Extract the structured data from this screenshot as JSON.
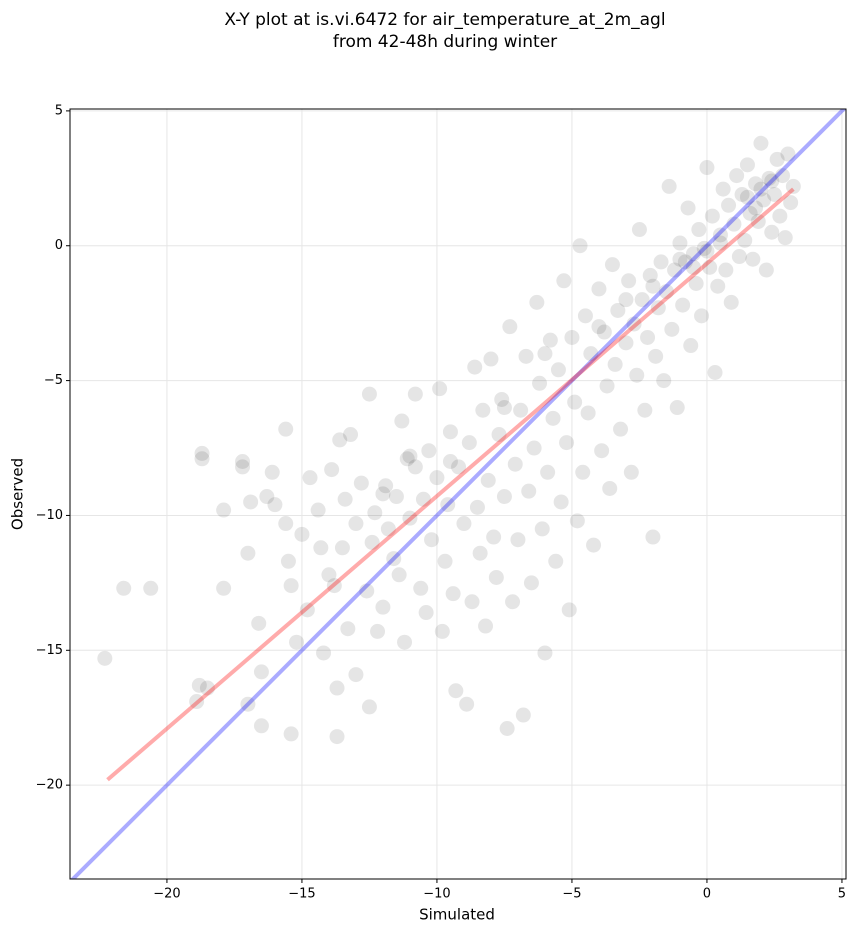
{
  "chart_data": {
    "type": "scatter",
    "title": [
      "X-Y plot at is.vi.6472 for air_temperature_at_2m_agl",
      "from 42-48h during winter"
    ],
    "x_label": "Simulated",
    "y_label": "Observed",
    "xlim": [
      -23.59,
      5.15
    ],
    "ylim": [
      -23.48,
      5.07
    ],
    "xticks": [
      {
        "value": -20,
        "label": "−20"
      },
      {
        "value": -15,
        "label": "−15"
      },
      {
        "value": -10,
        "label": "−10"
      },
      {
        "value": -5,
        "label": "−5"
      },
      0,
      5
    ],
    "yticks": [
      {
        "value": -20,
        "label": "−20"
      },
      {
        "value": -15,
        "label": "−15"
      },
      {
        "value": -10,
        "label": "−10"
      },
      {
        "value": -5,
        "label": "−5"
      },
      0,
      5
    ],
    "grid": true,
    "series": [
      {
        "color": "#000000",
        "x": [
          -22.3,
          -21.6,
          -20.6,
          -18.7,
          -18.7,
          -17.9,
          -17.9,
          -17.2,
          -17.2,
          -17,
          -16.9,
          -16.6,
          -16.3,
          -16.5,
          -16.5,
          -17,
          -18.9,
          -18.8,
          -18.5,
          -16.1,
          -16,
          -15.6,
          -15.6,
          -15.5,
          -15.4,
          -15.4,
          -15.2,
          -15,
          -14.8,
          -14.7,
          -14.4,
          -14.3,
          -14.2,
          -14,
          -13.9,
          -13.8,
          -13.7,
          -13.7,
          -13.6,
          -13.5,
          -13.4,
          -13.3,
          -13.2,
          -13,
          -13,
          -12.8,
          -12.6,
          -12.5,
          -12.5,
          -12.4,
          -12.3,
          -12.2,
          -12,
          -11.9,
          -11.8,
          -11.6,
          -11.5,
          -11.4,
          -11.3,
          -11.2,
          -11.1,
          -11,
          -10.8,
          -10.8,
          -10.6,
          -10.5,
          -10.4,
          -10.3,
          -10.2,
          -10,
          -9.9,
          -9.8,
          -9.7,
          -9.6,
          -9.5,
          -9.4,
          -9.3,
          -9.2,
          -9,
          -8.9,
          -8.8,
          -8.7,
          -8.6,
          -8.5,
          -8.4,
          -8.3,
          -8.2,
          -8.1,
          -8,
          -7.9,
          -7.8,
          -7.7,
          -7.6,
          -7.5,
          -7.4,
          -7.3,
          -7.2,
          -7.1,
          -7,
          -6.9,
          -6.8,
          -6.7,
          -6.6,
          -6.5,
          -6.4,
          -6.3,
          -6.2,
          -6.1,
          -6,
          -5.9,
          -5.8,
          -5.7,
          -5.6,
          -5.5,
          -5.4,
          -5.3,
          -5.2,
          -5.1,
          -5,
          -4.9,
          -4.8,
          -4.7,
          -4.6,
          -4.5,
          -4.4,
          -4.3,
          -4.2,
          -4,
          -3.9,
          -3.8,
          -3.7,
          -3.6,
          -3.5,
          -3.4,
          -3.3,
          -3.2,
          -3,
          -2.9,
          -2.8,
          -2.7,
          -2.6,
          -2.5,
          -2.4,
          -2.3,
          -2.2,
          -2.1,
          -2,
          -1.9,
          -1.8,
          -1.7,
          -1.6,
          -1.5,
          -1.4,
          -1.3,
          -1.2,
          -1.1,
          -1,
          -0.9,
          -0.8,
          -0.7,
          -0.6,
          -0.5,
          -0.4,
          -0.3,
          -0.2,
          -0.1,
          0,
          0.1,
          0.2,
          0.3,
          0.4,
          0.5,
          0.6,
          0.7,
          0.8,
          0.9,
          1,
          1.1,
          1.2,
          1.3,
          1.4,
          1.5,
          1.6,
          1.7,
          1.8,
          1.9,
          2,
          2.1,
          2.2,
          2.3,
          2.4,
          2.5,
          2.6,
          2.7,
          2.8,
          2.9,
          3,
          3.1,
          3.2,
          -9.5,
          -11,
          -12,
          -7.5,
          -6,
          -4,
          -3,
          -2,
          -1,
          0,
          1.5,
          2,
          1.8,
          2.4,
          -0.5,
          0.5
        ],
        "y": [
          -15.3,
          -12.7,
          -12.7,
          -7.7,
          -7.9,
          -9.8,
          -12.7,
          -8,
          -8.2,
          -11.4,
          -9.5,
          -14,
          -9.3,
          -15.8,
          -17.8,
          -17,
          -16.9,
          -16.3,
          -16.4,
          -8.4,
          -9.6,
          -6.8,
          -10.3,
          -11.7,
          -12.6,
          -18.1,
          -14.7,
          -10.7,
          -13.5,
          -8.6,
          -9.8,
          -11.2,
          -15.1,
          -12.2,
          -8.3,
          -12.6,
          -16.4,
          -18.2,
          -7.2,
          -11.2,
          -9.4,
          -14.2,
          -7,
          -10.3,
          -15.9,
          -8.8,
          -12.8,
          -5.5,
          -17.1,
          -11,
          -9.9,
          -14.3,
          -13.4,
          -8.9,
          -10.5,
          -11.6,
          -9.3,
          -12.2,
          -6.5,
          -14.7,
          -7.9,
          -10.1,
          -8.2,
          -5.5,
          -12.7,
          -9.4,
          -13.6,
          -7.6,
          -10.9,
          -8.6,
          -5.3,
          -14.3,
          -11.7,
          -9.6,
          -6.9,
          -12.9,
          -16.5,
          -8.2,
          -10.3,
          -17,
          -7.3,
          -13.2,
          -4.5,
          -9.7,
          -11.4,
          -6.1,
          -14.1,
          -8.7,
          -4.2,
          -10.8,
          -12.3,
          -7,
          -5.7,
          -9.3,
          -17.9,
          -3,
          -13.2,
          -8.1,
          -10.9,
          -6.1,
          -17.4,
          -4.1,
          -9.1,
          -12.5,
          -7.5,
          -2.1,
          -5.1,
          -10.5,
          -15.1,
          -8.4,
          -3.5,
          -6.4,
          -11.7,
          -4.6,
          -9.5,
          -1.3,
          -7.3,
          -13.5,
          -3.4,
          -5.8,
          -10.2,
          0,
          -8.4,
          -2.6,
          -6.2,
          -4,
          -11.1,
          -1.6,
          -7.6,
          -3.2,
          -5.2,
          -9,
          -0.7,
          -4.4,
          -2.4,
          -6.8,
          -3.6,
          -1.3,
          -8.4,
          -2.9,
          -4.8,
          0.6,
          -2,
          -6.1,
          -3.4,
          -1.1,
          -10.8,
          -4.1,
          -2.3,
          -0.6,
          -5,
          -1.7,
          2.2,
          -3.1,
          -0.9,
          -6,
          0.1,
          -2.2,
          -0.6,
          1.4,
          -3.7,
          -0.3,
          -1.4,
          0.6,
          -2.6,
          -0.1,
          2.9,
          -0.8,
          1.1,
          -4.7,
          -1.5,
          0.4,
          2.1,
          -0.9,
          1.5,
          -2.1,
          0.8,
          2.6,
          -0.4,
          1.9,
          0.2,
          3,
          1.2,
          -0.5,
          2.3,
          0.9,
          3.8,
          1.7,
          -0.9,
          2.5,
          0.5,
          1.9,
          3.2,
          1.1,
          2.6,
          0.3,
          3.4,
          1.6,
          2.2,
          -8,
          -7.8,
          -9.2,
          -6,
          -4,
          -3,
          -2,
          -1.5,
          -0.5,
          -0.2,
          1.8,
          2.1,
          1.4,
          2.4,
          -0.8,
          0.1
        ]
      }
    ],
    "lines": [
      {
        "color": "#0000ff",
        "x": [
          -23.59,
          5.15
        ],
        "y": [
          -23.59,
          5.15
        ]
      },
      {
        "color": "#ff0000",
        "x": [
          -22.2,
          3.2
        ],
        "y": [
          -19.8,
          2.1
        ]
      }
    ]
  }
}
